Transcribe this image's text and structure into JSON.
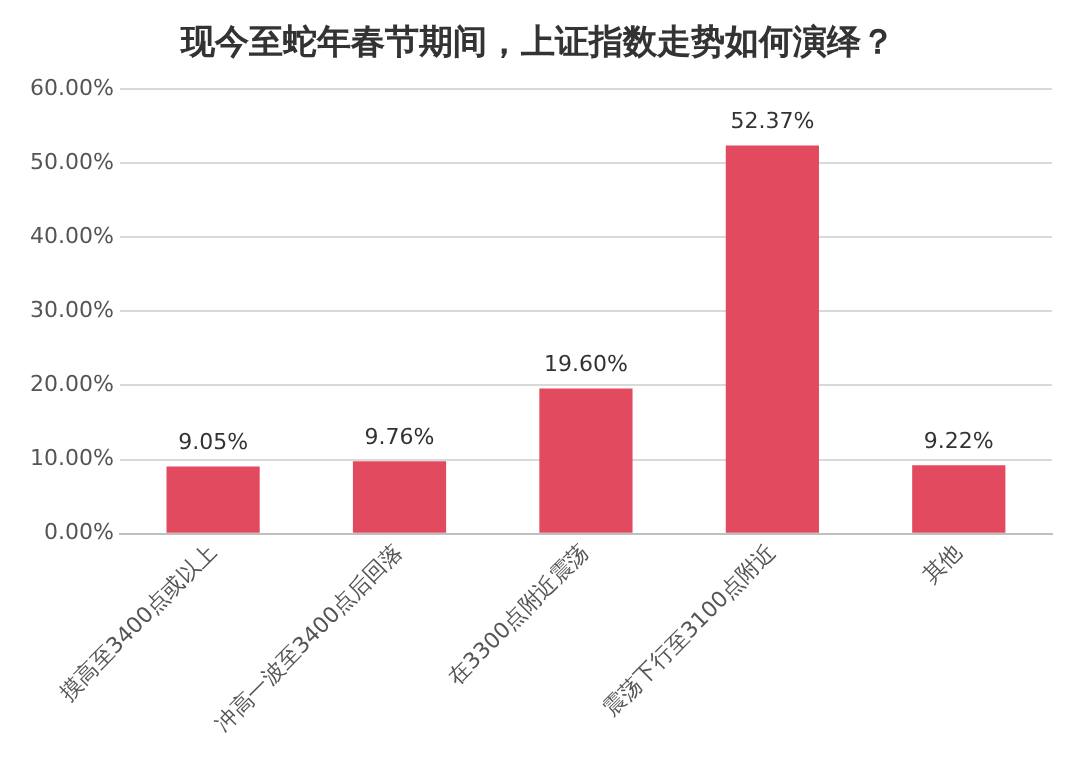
{
  "chart_data": {
    "type": "bar",
    "title": "现今至蛇年春节期间，上证指数走势如何演绎？",
    "categories": [
      "摸高至3400点或以上",
      "冲高一波至3400点后回落",
      "在3300点附近震荡",
      "震荡下行至3100点附近",
      "其他"
    ],
    "values": [
      9.05,
      9.76,
      19.6,
      52.37,
      9.22
    ],
    "value_labels": [
      "9.05%",
      "9.76%",
      "19.60%",
      "52.37%",
      "9.22%"
    ],
    "color": "#e24a60",
    "ylim": [
      0,
      60
    ],
    "yticks": [
      {
        "value": 0,
        "label": "0.00%"
      },
      {
        "value": 10,
        "label": "10.00%"
      },
      {
        "value": 20,
        "label": "20.00%"
      },
      {
        "value": 30,
        "label": "30.00%"
      },
      {
        "value": 40,
        "label": "40.00%"
      },
      {
        "value": 50,
        "label": "50.00%"
      },
      {
        "value": 60,
        "label": "60.00%"
      }
    ],
    "grid": "y",
    "legend": false
  }
}
